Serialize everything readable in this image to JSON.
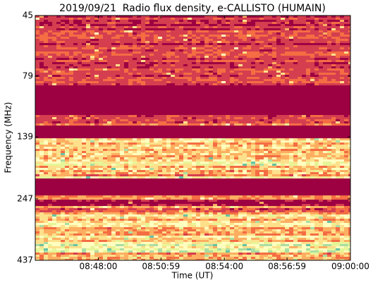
{
  "chart_data": {
    "type": "spectrogram",
    "title": "2019/09/21  Radio flux density, e-CALLISTO (HUMAIN)",
    "xlabel": "Time (UT)",
    "ylabel": "Frequency (MHz)",
    "xlim": [
      31500,
      32400
    ],
    "xticks": [
      {
        "value": 31680,
        "label": "08:48:00"
      },
      {
        "value": 31859,
        "label": "08:50:59"
      },
      {
        "value": 32040,
        "label": "08:54:00"
      },
      {
        "value": 32219,
        "label": "08:56:59"
      },
      {
        "value": 32400,
        "label": "09:00:00"
      }
    ],
    "ylim": [
      437,
      45
    ],
    "ylog": true,
    "yticks": [
      45,
      79,
      139,
      247,
      437
    ],
    "colormap": [
      "#9e0142",
      "#d53e4f",
      "#f46d43",
      "#fdae61",
      "#fee08b",
      "#ffffbf",
      "#e6f598",
      "#abdda4",
      "#66c2a5"
    ]
  }
}
